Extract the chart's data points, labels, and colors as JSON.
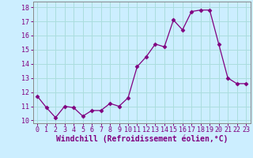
{
  "x": [
    0,
    1,
    2,
    3,
    4,
    5,
    6,
    7,
    8,
    9,
    10,
    11,
    12,
    13,
    14,
    15,
    16,
    17,
    18,
    19,
    20,
    21,
    22,
    23
  ],
  "y": [
    11.7,
    10.9,
    10.2,
    11.0,
    10.9,
    10.3,
    10.7,
    10.7,
    11.2,
    11.0,
    11.6,
    13.8,
    14.5,
    15.4,
    15.2,
    17.1,
    16.4,
    17.7,
    17.8,
    17.8,
    15.4,
    13.0,
    12.6,
    12.6
  ],
  "line_color": "#800080",
  "marker": "D",
  "marker_size": 2.5,
  "bg_color": "#cceeff",
  "grid_color": "#aadddd",
  "xlabel": "Windchill (Refroidissement éolien,°C)",
  "xlabel_fontsize": 7,
  "tick_fontsize": 6,
  "ylim": [
    9.8,
    18.4
  ],
  "xlim": [
    -0.5,
    23.5
  ],
  "yticks": [
    10,
    11,
    12,
    13,
    14,
    15,
    16,
    17,
    18
  ],
  "xticks": [
    0,
    1,
    2,
    3,
    4,
    5,
    6,
    7,
    8,
    9,
    10,
    11,
    12,
    13,
    14,
    15,
    16,
    17,
    18,
    19,
    20,
    21,
    22,
    23
  ]
}
